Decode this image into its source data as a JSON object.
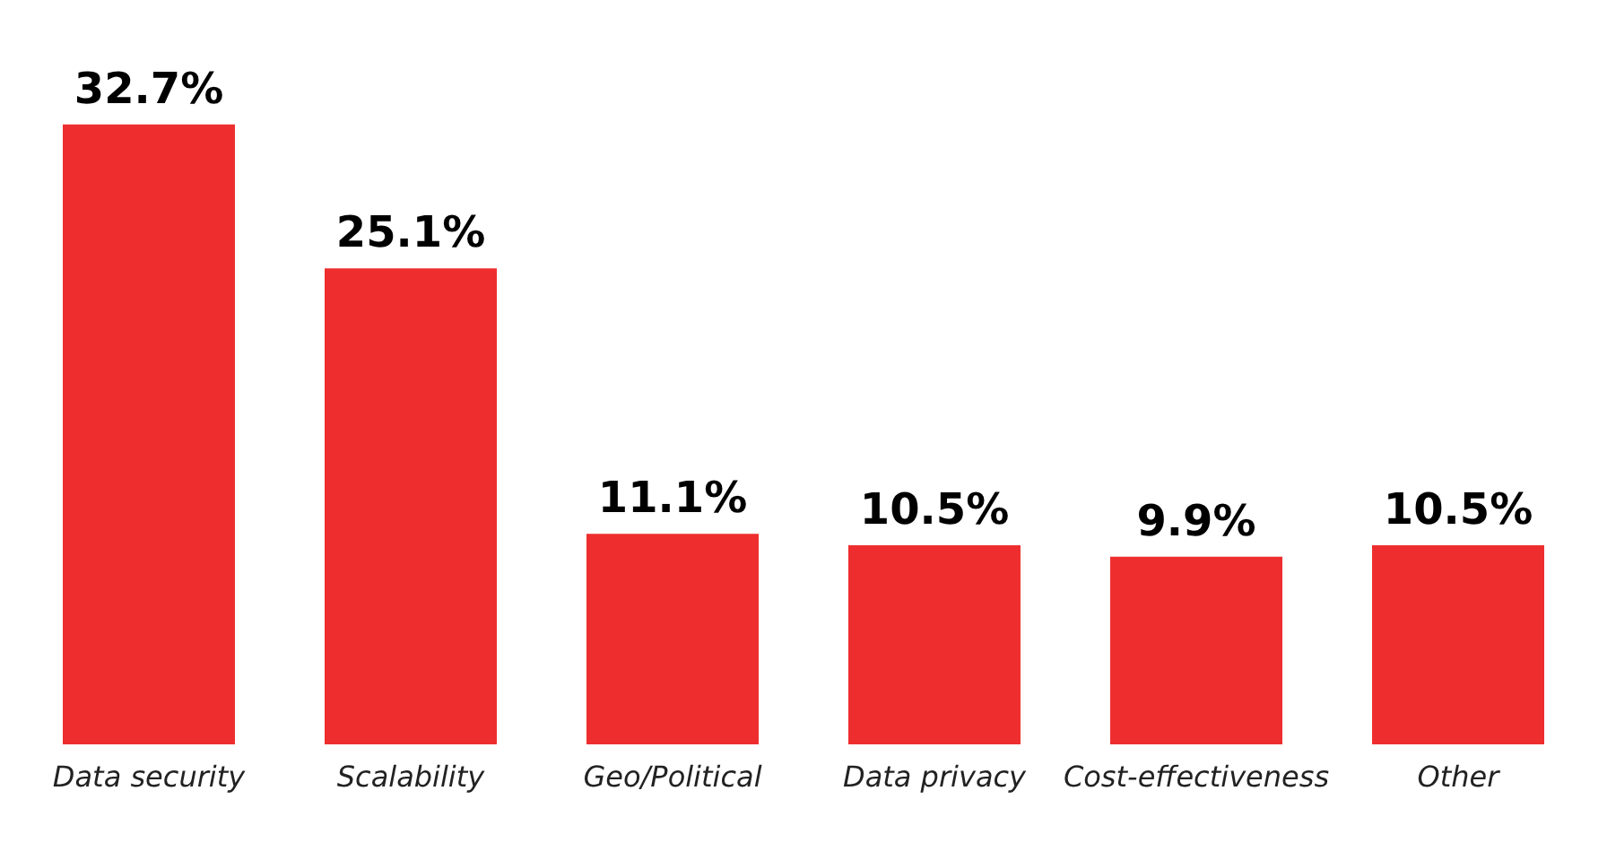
{
  "chart_data": {
    "type": "bar",
    "categories": [
      "Data security",
      "Scalability",
      "Geo/Political",
      "Data privacy",
      "Cost-effectiveness",
      "Other"
    ],
    "values": [
      32.7,
      25.1,
      11.1,
      10.5,
      9.9,
      10.5
    ],
    "value_labels": [
      "32.7%",
      "25.1%",
      "11.1%",
      "10.5%",
      "9.9%",
      "10.5%"
    ],
    "color": "#ee2e2e"
  }
}
